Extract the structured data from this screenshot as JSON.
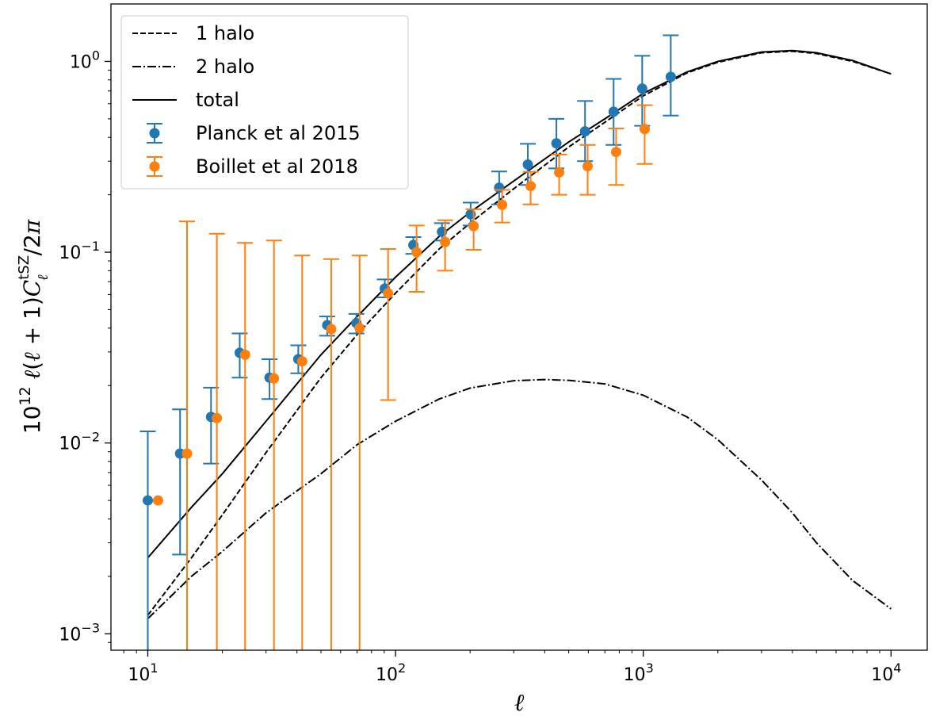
{
  "chart_data": {
    "type": "line",
    "xlabel": "ℓ",
    "ylabel": "10¹² ℓ(ℓ + 1)C_ℓ^tSZ/2π",
    "xscale": "log",
    "yscale": "log",
    "xlim": [
      7.1,
      14000
    ],
    "ylim": [
      0.00082,
      2.0
    ],
    "grid": false,
    "legend_position": "top-left",
    "x_ticks": [
      {
        "value": 10,
        "mantissa": "10",
        "exp": "1"
      },
      {
        "value": 100,
        "mantissa": "10",
        "exp": "2"
      },
      {
        "value": 1000,
        "mantissa": "10",
        "exp": "3"
      },
      {
        "value": 10000,
        "mantissa": "10",
        "exp": "4"
      }
    ],
    "y_ticks": [
      {
        "value": 0.001,
        "mantissa": "10",
        "exp": "−3"
      },
      {
        "value": 0.01,
        "mantissa": "10",
        "exp": "−2"
      },
      {
        "value": 0.1,
        "mantissa": "10",
        "exp": "−1"
      },
      {
        "value": 1.0,
        "mantissa": "10",
        "exp": "0"
      }
    ],
    "lines": [
      {
        "name": "1 halo",
        "style": "dashed",
        "color": "#000000",
        "x": [
          10,
          15,
          20,
          30,
          50,
          70,
          100,
          150,
          200,
          300,
          500,
          700,
          1000,
          1500,
          2000,
          3000,
          4000,
          5000,
          7000,
          10000
        ],
        "y": [
          0.00125,
          0.0025,
          0.0042,
          0.0089,
          0.022,
          0.037,
          0.061,
          0.104,
          0.142,
          0.215,
          0.356,
          0.48,
          0.66,
          0.87,
          0.99,
          1.11,
          1.13,
          1.1,
          1.0,
          0.86
        ]
      },
      {
        "name": "2 halo",
        "style": "dashdot",
        "color": "#000000",
        "x": [
          10,
          15,
          20,
          30,
          50,
          70,
          100,
          150,
          200,
          300,
          400,
          500,
          700,
          1000,
          1500,
          2000,
          3000,
          4000,
          5000,
          7000,
          10000
        ],
        "y": [
          0.0012,
          0.002,
          0.0027,
          0.0043,
          0.0069,
          0.0098,
          0.013,
          0.017,
          0.0194,
          0.0212,
          0.0215,
          0.0213,
          0.0204,
          0.0178,
          0.0137,
          0.0104,
          0.0064,
          0.0043,
          0.003,
          0.0019,
          0.00135
        ]
      },
      {
        "name": "total",
        "style": "solid",
        "color": "#000000",
        "x": [
          10,
          15,
          20,
          30,
          50,
          70,
          100,
          150,
          200,
          300,
          500,
          700,
          1000,
          1500,
          2000,
          3000,
          4000,
          5000,
          7000,
          10000
        ],
        "y": [
          0.0025,
          0.0046,
          0.0069,
          0.013,
          0.029,
          0.046,
          0.074,
          0.121,
          0.162,
          0.236,
          0.378,
          0.5,
          0.68,
          0.88,
          1.0,
          1.12,
          1.14,
          1.11,
          1.01,
          0.86
        ]
      }
    ],
    "series": [
      {
        "name": "Planck et al 2015",
        "color": "#1f77b4",
        "points": [
          {
            "x": 10,
            "y": 0.005,
            "lo": 0.0008,
            "hi": 0.0115
          },
          {
            "x": 13.5,
            "y": 0.0088,
            "lo": 0.0026,
            "hi": 0.015
          },
          {
            "x": 18,
            "y": 0.0137,
            "lo": 0.0078,
            "hi": 0.0195
          },
          {
            "x": 23.5,
            "y": 0.0297,
            "lo": 0.022,
            "hi": 0.0375
          },
          {
            "x": 31,
            "y": 0.022,
            "lo": 0.017,
            "hi": 0.0275
          },
          {
            "x": 40.5,
            "y": 0.0275,
            "lo": 0.0232,
            "hi": 0.0325
          },
          {
            "x": 53,
            "y": 0.0415,
            "lo": 0.0365,
            "hi": 0.046
          },
          {
            "x": 69.5,
            "y": 0.0425,
            "lo": 0.0375,
            "hi": 0.0475
          },
          {
            "x": 90.5,
            "y": 0.0645,
            "lo": 0.058,
            "hi": 0.072
          },
          {
            "x": 118,
            "y": 0.109,
            "lo": 0.098,
            "hi": 0.12
          },
          {
            "x": 154,
            "y": 0.128,
            "lo": 0.115,
            "hi": 0.142
          },
          {
            "x": 201,
            "y": 0.158,
            "lo": 0.138,
            "hi": 0.182
          },
          {
            "x": 262,
            "y": 0.218,
            "lo": 0.178,
            "hi": 0.265
          },
          {
            "x": 342,
            "y": 0.288,
            "lo": 0.225,
            "hi": 0.37
          },
          {
            "x": 446,
            "y": 0.372,
            "lo": 0.275,
            "hi": 0.5
          },
          {
            "x": 582,
            "y": 0.43,
            "lo": 0.3,
            "hi": 0.62
          },
          {
            "x": 759,
            "y": 0.545,
            "lo": 0.365,
            "hi": 0.81
          },
          {
            "x": 990,
            "y": 0.72,
            "lo": 0.46,
            "hi": 1.07
          },
          {
            "x": 1291,
            "y": 0.83,
            "lo": 0.52,
            "hi": 1.37
          }
        ]
      },
      {
        "name": "Boillet et al 2018",
        "color": "#ff7f0e",
        "points": [
          {
            "x": 11,
            "y": 0.005,
            "lo": 0.0008,
            "hi": 0.0008
          },
          {
            "x": 14.4,
            "y": 0.0088,
            "lo": 0.0008,
            "hi": 0.145
          },
          {
            "x": 19,
            "y": 0.0135,
            "lo": 0.0008,
            "hi": 0.125
          },
          {
            "x": 24.7,
            "y": 0.029,
            "lo": 0.0008,
            "hi": 0.112
          },
          {
            "x": 32.3,
            "y": 0.0218,
            "lo": 0.0008,
            "hi": 0.115
          },
          {
            "x": 42,
            "y": 0.0268,
            "lo": 0.0008,
            "hi": 0.096
          },
          {
            "x": 55,
            "y": 0.0395,
            "lo": 0.0008,
            "hi": 0.092
          },
          {
            "x": 71.6,
            "y": 0.04,
            "lo": 0.0008,
            "hi": 0.096
          },
          {
            "x": 93.3,
            "y": 0.061,
            "lo": 0.0168,
            "hi": 0.104
          },
          {
            "x": 121.6,
            "y": 0.1,
            "lo": 0.062,
            "hi": 0.138
          },
          {
            "x": 158.5,
            "y": 0.113,
            "lo": 0.08,
            "hi": 0.147
          },
          {
            "x": 206.6,
            "y": 0.137,
            "lo": 0.103,
            "hi": 0.168
          },
          {
            "x": 269.3,
            "y": 0.177,
            "lo": 0.143,
            "hi": 0.212
          },
          {
            "x": 351,
            "y": 0.222,
            "lo": 0.178,
            "hi": 0.264
          },
          {
            "x": 457.5,
            "y": 0.262,
            "lo": 0.2,
            "hi": 0.325
          },
          {
            "x": 596.3,
            "y": 0.282,
            "lo": 0.2,
            "hi": 0.365
          },
          {
            "x": 777,
            "y": 0.335,
            "lo": 0.225,
            "hi": 0.445
          },
          {
            "x": 1013,
            "y": 0.442,
            "lo": 0.29,
            "hi": 0.59
          }
        ]
      }
    ]
  }
}
